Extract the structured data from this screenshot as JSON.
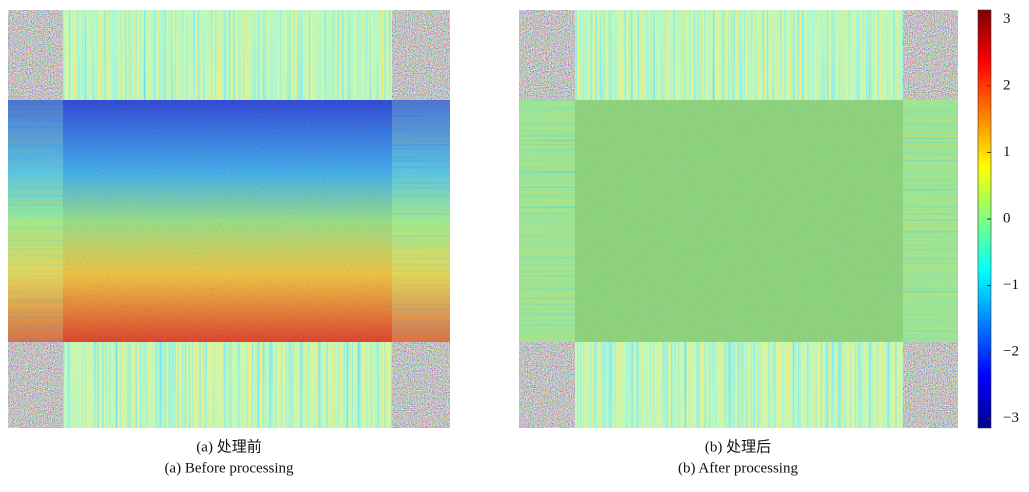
{
  "panels": [
    {
      "label_zh": "(a) 处理前",
      "label_en": "(a) Before processing"
    },
    {
      "label_zh": "(b) 处理后",
      "label_en": "(b) After processing"
    }
  ],
  "colorbar": {
    "lim": [
      -3.14,
      3.14
    ],
    "ticks": [
      {
        "value": -3,
        "label": "−3"
      },
      {
        "value": -2,
        "label": "−2"
      },
      {
        "value": -1,
        "label": "−1"
      },
      0,
      1,
      2,
      3
    ]
  }
}
